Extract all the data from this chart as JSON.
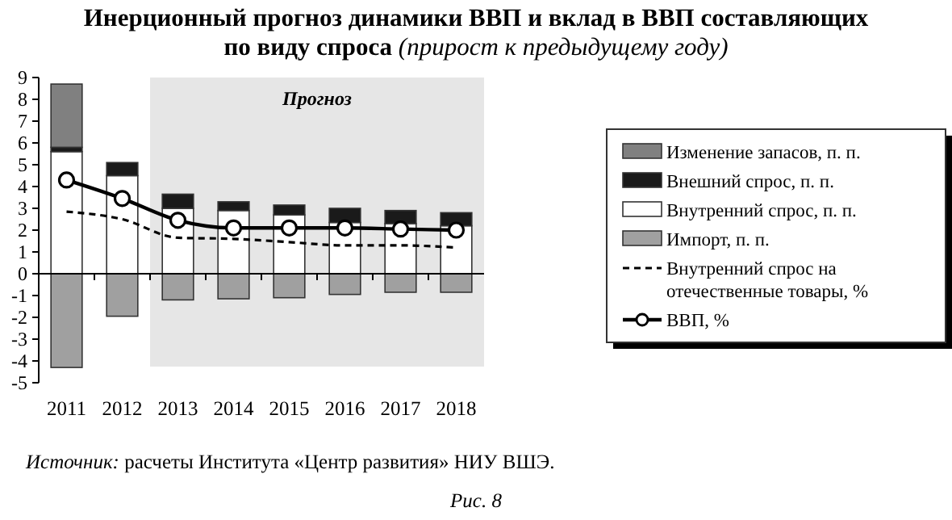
{
  "chart_data": {
    "type": "bar",
    "stacked": true,
    "title": "Инерционный прогноз динамики ВВП и вклад в ВВП составляющих по виду спроса",
    "subtitle": "(прирост к предыдущему году)",
    "categories": [
      "2011",
      "2012",
      "2013",
      "2014",
      "2015",
      "2016",
      "2017",
      "2018"
    ],
    "series": [
      {
        "name": "Внутренний спрос, п. п.",
        "color": "#ffffff",
        "values": [
          5.6,
          4.5,
          3.0,
          2.9,
          2.7,
          2.35,
          2.3,
          2.2
        ]
      },
      {
        "name": "Внешний спрос, п. п.",
        "color": "#1a1a1a",
        "values": [
          0.2,
          0.6,
          0.65,
          0.4,
          0.45,
          0.65,
          0.6,
          0.6
        ]
      },
      {
        "name": "Изменение запасов, п. п.",
        "color": "#808080",
        "values": [
          2.9,
          null,
          null,
          null,
          null,
          null,
          null,
          null
        ]
      },
      {
        "name": "Импорт, п. п.",
        "color": "#a0a0a0",
        "values": [
          -4.3,
          -1.95,
          -1.2,
          -1.15,
          -1.1,
          -0.95,
          -0.85,
          -0.85
        ]
      },
      {
        "name": "Внутренний спрос на отечественные товары, %",
        "type": "line",
        "color": "#000000",
        "line_style": "dashed",
        "marker": "none",
        "values": [
          2.85,
          2.5,
          1.65,
          1.6,
          1.45,
          1.3,
          1.3,
          1.2
        ]
      },
      {
        "name": "ВВП, %",
        "type": "line",
        "color": "#000000",
        "line_style": "solid",
        "marker": "circle",
        "values": [
          4.3,
          3.45,
          2.45,
          2.1,
          2.1,
          2.1,
          2.05,
          2.0
        ]
      }
    ],
    "ylim": [
      -5,
      9
    ],
    "yticks": [
      -5,
      -4,
      -3,
      -2,
      -1,
      0,
      1,
      2,
      3,
      4,
      5,
      6,
      7,
      8,
      9
    ],
    "bands": [
      {
        "axis": "x",
        "from": "2013",
        "to": "2018",
        "label": "Прогноз",
        "color": "#e6e6e6"
      }
    ],
    "legend": "right",
    "annotations": [
      "Источник: расчеты Института «Центр развития» НИУ ВШЭ.",
      "Рис. 8"
    ]
  }
}
